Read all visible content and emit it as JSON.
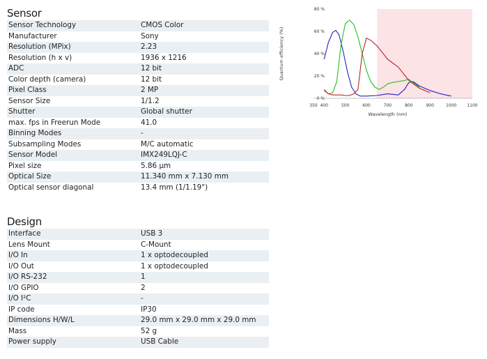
{
  "sensor": {
    "title": "Sensor",
    "rows": [
      {
        "label": "Sensor Technology",
        "value": "CMOS Color"
      },
      {
        "label": "Manufacturer",
        "value": "Sony"
      },
      {
        "label": "Resolution (MPix)",
        "value": "2.23"
      },
      {
        "label": "Resolution (h x v)",
        "value": "1936 x 1216"
      },
      {
        "label": "ADC",
        "value": "12 bit"
      },
      {
        "label": "Color depth (camera)",
        "value": "12 bit"
      },
      {
        "label": "Pixel Class",
        "value": "2 MP"
      },
      {
        "label": "Sensor Size",
        "value": "1/1.2"
      },
      {
        "label": "Shutter",
        "value": "Global shutter"
      },
      {
        "label": "max. fps in Freerun Mode",
        "value": "41.0"
      },
      {
        "label": "Binning Modes",
        "value": "-"
      },
      {
        "label": "Subsampling Modes",
        "value": "M/C automatic"
      },
      {
        "label": "Sensor Model",
        "value": "IMX249LQJ-C"
      },
      {
        "label": "Pixel size",
        "value": "5.86 µm"
      },
      {
        "label": "Optical Size",
        "value": "11.340 mm x 7.130 mm"
      },
      {
        "label": "Optical sensor diagonal",
        "value": "13.4 mm (1/1.19\")"
      }
    ]
  },
  "design": {
    "title": "Design",
    "rows": [
      {
        "label": "Interface",
        "value": "USB 3"
      },
      {
        "label": "Lens Mount",
        "value": "C-Mount"
      },
      {
        "label": "I/O In",
        "value": "1 x optodecoupled"
      },
      {
        "label": "I/O Out",
        "value": "1 x optodecoupled"
      },
      {
        "label": "I/O RS-232",
        "value": "1"
      },
      {
        "label": "I/O GPIO",
        "value": "2"
      },
      {
        "label": "I/O I²C",
        "value": "-"
      },
      {
        "label": "IP code",
        "value": "IP30"
      },
      {
        "label": "Dimensions H/W/L",
        "value": "29.0 mm x 29.0 mm x 29.0 mm"
      },
      {
        "label": "Mass",
        "value": "52 g"
      },
      {
        "label": "Power supply",
        "value": "USB Cable"
      }
    ]
  },
  "chart_data": {
    "type": "line",
    "title": "",
    "xlabel": "Wavelength (nm)",
    "ylabel": "Quantum efficiency (%)",
    "xlim": [
      350,
      1100
    ],
    "ylim": [
      0,
      80
    ],
    "xticks": [
      350,
      400,
      500,
      600,
      700,
      800,
      900,
      1000,
      1100
    ],
    "yticks": [
      0,
      20,
      40,
      60,
      80
    ],
    "ytick_labels": [
      "0 %",
      "20 %",
      "40 %",
      "60 %",
      "80 %"
    ],
    "grid": false,
    "shaded_region": {
      "x_from": 650,
      "x_to": 1100,
      "color": "#fbe3e6"
    },
    "series": [
      {
        "color": "#2020c0",
        "x": [
          400,
          420,
          440,
          455,
          470,
          490,
          510,
          530,
          550,
          570,
          600,
          650,
          700,
          750,
          780,
          800,
          820,
          850,
          900,
          950,
          1000
        ],
        "y": [
          35,
          50,
          59,
          61,
          57,
          42,
          24,
          10,
          4,
          2,
          2,
          2.5,
          4,
          3,
          8,
          14,
          15,
          11,
          7,
          4,
          2
        ]
      },
      {
        "color": "#20c020",
        "x": [
          400,
          420,
          440,
          460,
          480,
          500,
          520,
          540,
          560,
          580,
          600,
          620,
          640,
          660,
          680,
          700,
          720,
          750,
          780,
          800,
          820,
          850
        ],
        "y": [
          8,
          4,
          5,
          15,
          48,
          67,
          70,
          66,
          55,
          40,
          25,
          15,
          10,
          8,
          10,
          13,
          14,
          15,
          16,
          17,
          14,
          10
        ]
      },
      {
        "color": "#c02020",
        "x": [
          400,
          420,
          440,
          460,
          480,
          500,
          520,
          540,
          560,
          580,
          600,
          620,
          650,
          700,
          750,
          800,
          850,
          900
        ],
        "y": [
          7,
          4,
          3,
          3,
          3,
          2.5,
          2.5,
          4,
          8,
          40,
          54,
          52,
          47,
          35,
          28,
          16,
          9,
          5
        ]
      }
    ]
  }
}
